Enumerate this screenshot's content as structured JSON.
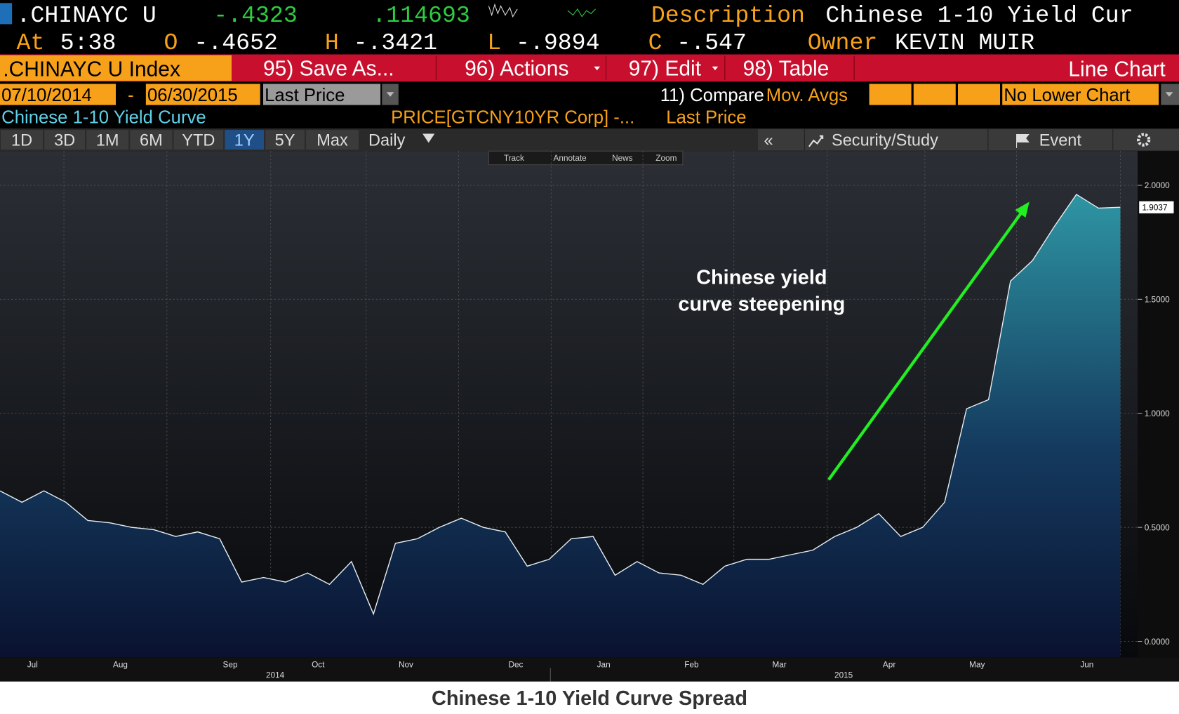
{
  "header": {
    "ticker": ".CHINAYC U",
    "change": "-.4323",
    "volume": ".114693",
    "description_label": "Description",
    "description": "Chinese 1-10 Yield Cur",
    "time_label": "At",
    "time": "5:38",
    "open_label": "O",
    "open": "-.4652",
    "high_label": "H",
    "high": "-.3421",
    "low_label": "L",
    "low": "-.9894",
    "close_label": "C",
    "close": "-.547",
    "owner_label": "Owner",
    "owner": "KEVIN MUIR"
  },
  "toolbar": {
    "security": ".CHINAYC U Index",
    "save": "95) Save As...",
    "actions": "96) Actions",
    "edit": "97) Edit",
    "table": "98) Table",
    "chart_type": "Line Chart"
  },
  "settings": {
    "start": "07/10/2014",
    "separator": "-",
    "end": "06/30/2015",
    "field": "Last Price",
    "compare": "11) Compare",
    "mov_avgs": "Mov. Avgs",
    "lower_chart": "No Lower Chart"
  },
  "legend_row": {
    "name": "Chinese 1-10 Yield Curve",
    "formula": "PRICE[GTCNY10YR Corp] -...",
    "field": "Last Price"
  },
  "periods": [
    "1D",
    "3D",
    "1M",
    "6M",
    "YTD",
    "1Y",
    "5Y",
    "Max"
  ],
  "frequency": "Daily",
  "collapse": "«",
  "security_study": "Security/Study",
  "event": "Event",
  "chart_tools": [
    "Track",
    "Annotate",
    "News",
    "Zoom"
  ],
  "chart_data": {
    "type": "area",
    "title": "Chinese 1-10 Yield Curve Spread",
    "annotation": [
      "Chinese yield",
      "curve steepening"
    ],
    "categories": [
      null,
      "Jul",
      null,
      null,
      null,
      "Aug",
      null,
      null,
      null,
      null,
      "Sep",
      null,
      null,
      null,
      "Oct",
      null,
      null,
      null,
      "Nov",
      null,
      null,
      null,
      null,
      "Dec",
      null,
      null,
      null,
      "Jan",
      null,
      null,
      null,
      "Feb",
      null,
      null,
      null,
      "Mar",
      null,
      null,
      null,
      null,
      "Apr",
      null,
      null,
      null,
      "May",
      null,
      null,
      null,
      null,
      "Jun",
      null,
      null
    ],
    "x_group_labels": [
      "2014",
      "2015"
    ],
    "values": [
      0.66,
      0.61,
      0.66,
      0.61,
      0.53,
      0.52,
      0.5,
      0.49,
      0.46,
      0.48,
      0.45,
      0.26,
      0.28,
      0.26,
      0.3,
      0.25,
      0.35,
      0.12,
      0.43,
      0.45,
      0.5,
      0.54,
      0.5,
      0.48,
      0.33,
      0.36,
      0.45,
      0.46,
      0.29,
      0.35,
      0.3,
      0.29,
      0.25,
      0.33,
      0.36,
      0.36,
      0.38,
      0.4,
      0.46,
      0.5,
      0.56,
      0.46,
      0.5,
      0.61,
      1.02,
      1.06,
      1.58,
      1.67,
      1.82,
      1.96,
      1.9,
      1.9037
    ],
    "last_value_label": "1.9037",
    "color": "#e6eef2",
    "ylim": [
      -0.07,
      2.15
    ],
    "yticks": [
      {
        "value": 0,
        "label": "0.0000"
      },
      {
        "value": 0.5,
        "label": "0.5000"
      },
      {
        "value": 1,
        "label": "1.0000"
      },
      {
        "value": 1.5,
        "label": "1.5000"
      },
      {
        "value": 2,
        "label": "2.0000"
      }
    ],
    "grid": true
  }
}
